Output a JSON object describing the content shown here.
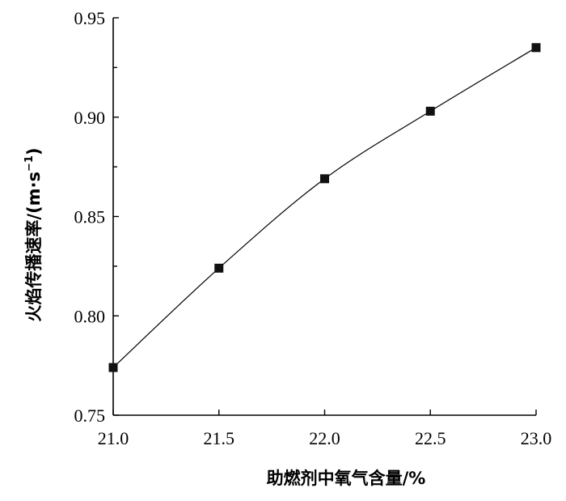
{
  "chart_data": {
    "type": "line",
    "title": "",
    "xlabel": "助燃剂中氧气含量/%",
    "ylabel_main": "火焰传播速率/(m·s",
    "ylabel_sup": "−1",
    "ylabel_tail": ")",
    "x": [
      21.0,
      21.5,
      22.0,
      22.5,
      23.0
    ],
    "series": [
      {
        "values": [
          0.774,
          0.824,
          0.869,
          0.903,
          0.935
        ]
      }
    ],
    "xlim": [
      21.0,
      23.0
    ],
    "ylim": [
      0.75,
      0.95
    ],
    "x_ticks": [
      "21.0",
      "21.5",
      "22.0",
      "22.5",
      "23.0"
    ],
    "y_ticks": [
      "0.75",
      "0.80",
      "0.85",
      "0.90",
      "0.95"
    ],
    "x_tick_values": [
      21.0,
      21.5,
      22.0,
      22.5,
      23.0
    ],
    "y_tick_values": [
      0.75,
      0.8,
      0.85,
      0.9,
      0.95
    ],
    "grid": false,
    "marker": "square",
    "color": "#000000"
  }
}
